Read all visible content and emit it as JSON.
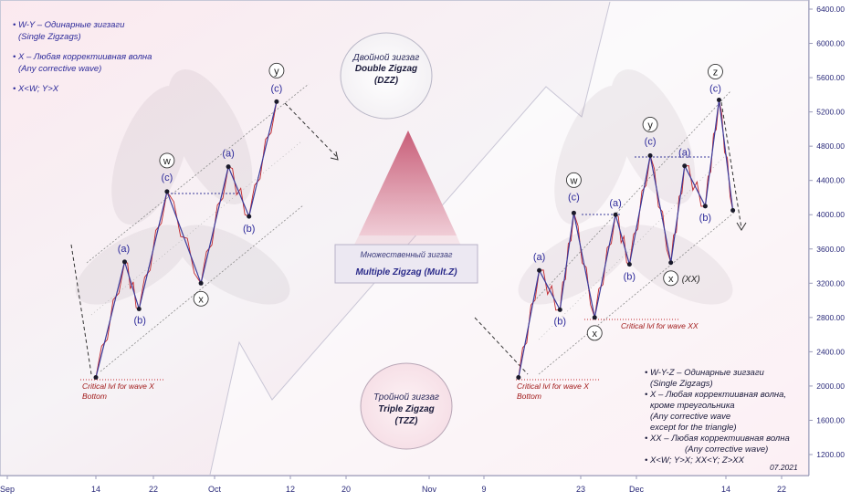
{
  "chart_data": {
    "type": "line",
    "title": "",
    "xlabel": "",
    "ylabel": "",
    "ylim": [
      1000,
      6500
    ],
    "y_ticks": [
      "6400.00",
      "6000.00",
      "5600.00",
      "5200.00",
      "4800.00",
      "4400.00",
      "4000.00",
      "3600.00",
      "3200.00",
      "2800.00",
      "2400.00",
      "2000.00",
      "1600.00",
      "1200.00"
    ],
    "x_ticks": [
      "Sep",
      "14",
      "22",
      "Oct",
      "12",
      "20",
      "Nov",
      "9",
      "23",
      "Dec",
      "14",
      "22"
    ],
    "series": [
      {
        "name": "",
        "x": [
          "Sep 14",
          "Sep 18",
          "Sep 20",
          "Sep 24",
          "Sep 29",
          "Oct 3",
          "Oct 6",
          "Oct 10"
        ],
        "values": [
          2100,
          3450,
          2900,
          4270,
          3200,
          4560,
          3980,
          5320
        ]
      },
      {
        "name": "",
        "x": [
          "Nov 14",
          "Nov 17",
          "Nov 20",
          "Nov 22",
          "Nov 25",
          "Nov 28",
          "Nov 30",
          "Dec 3",
          "Dec 6",
          "Dec 8",
          "Dec 11",
          "Dec 13",
          "Dec 15"
        ],
        "values": [
          2100,
          3350,
          2890,
          4020,
          2800,
          4000,
          3420,
          4690,
          3440,
          4570,
          4100,
          5340,
          4050
        ]
      }
    ],
    "annotations": {
      "left": {
        "w": "w",
        "x": "x",
        "y": "y",
        "a": "(a)",
        "b": "(b)",
        "c": "(c)",
        "critical": "Critical lvl for wave X",
        "bottom": "Bottom"
      },
      "right": {
        "w": "w",
        "x": "x",
        "y": "y",
        "z": "z",
        "a": "(a)",
        "b": "(b)",
        "c": "(c)",
        "xx_label": "(XX)",
        "critical_xx": "Critical lvl for wave XX",
        "critical": "Critical lvl for wave X",
        "bottom": "Bottom"
      }
    }
  },
  "legend_left": {
    "line1": "W-Y – Одинарные зигзаги",
    "line2": "(Single Zigzags)",
    "line3": "X – Любая корректиивная волна",
    "line4": "(Any corrective wave)",
    "line5": "X<W; Y>X"
  },
  "legend_right": {
    "line1": "W-Y-Z  – Одинарные зигзаги",
    "line2": "(Single Zigzags)",
    "line3": "X – Любая корректиивная волна,",
    "line4": "кроме треугольника",
    "line5": "(Any corrective wave",
    "line6": "except for the triangle)",
    "line7": "XX – Любая корректиивная волна",
    "line8": "(Any corrective wave)",
    "line9": "X<W; Y>X; XX<Y; Z>XX"
  },
  "pyramid": {
    "dzz_ru": "Двойной зигзаг",
    "dzz_en": "Double Zigzag",
    "dzz_abbr": "(DZZ)",
    "mult_ru": "Множественный зигзаг",
    "mult_en": "Multiple Zigzag (Mult.Z)",
    "tzz_ru": "Тройной зигзаг",
    "tzz_en": "Triple Zigzag",
    "tzz_abbr": "(TZZ)"
  },
  "date_stamp": "07.2021",
  "colors": {
    "axis_text": "#2a2a7a",
    "blue_line": "#3a3a9a",
    "red_line": "#c1272d",
    "critical_text": "#a01818",
    "label_text": "#2d2a9a",
    "trend_line": "#6a6a6a"
  }
}
